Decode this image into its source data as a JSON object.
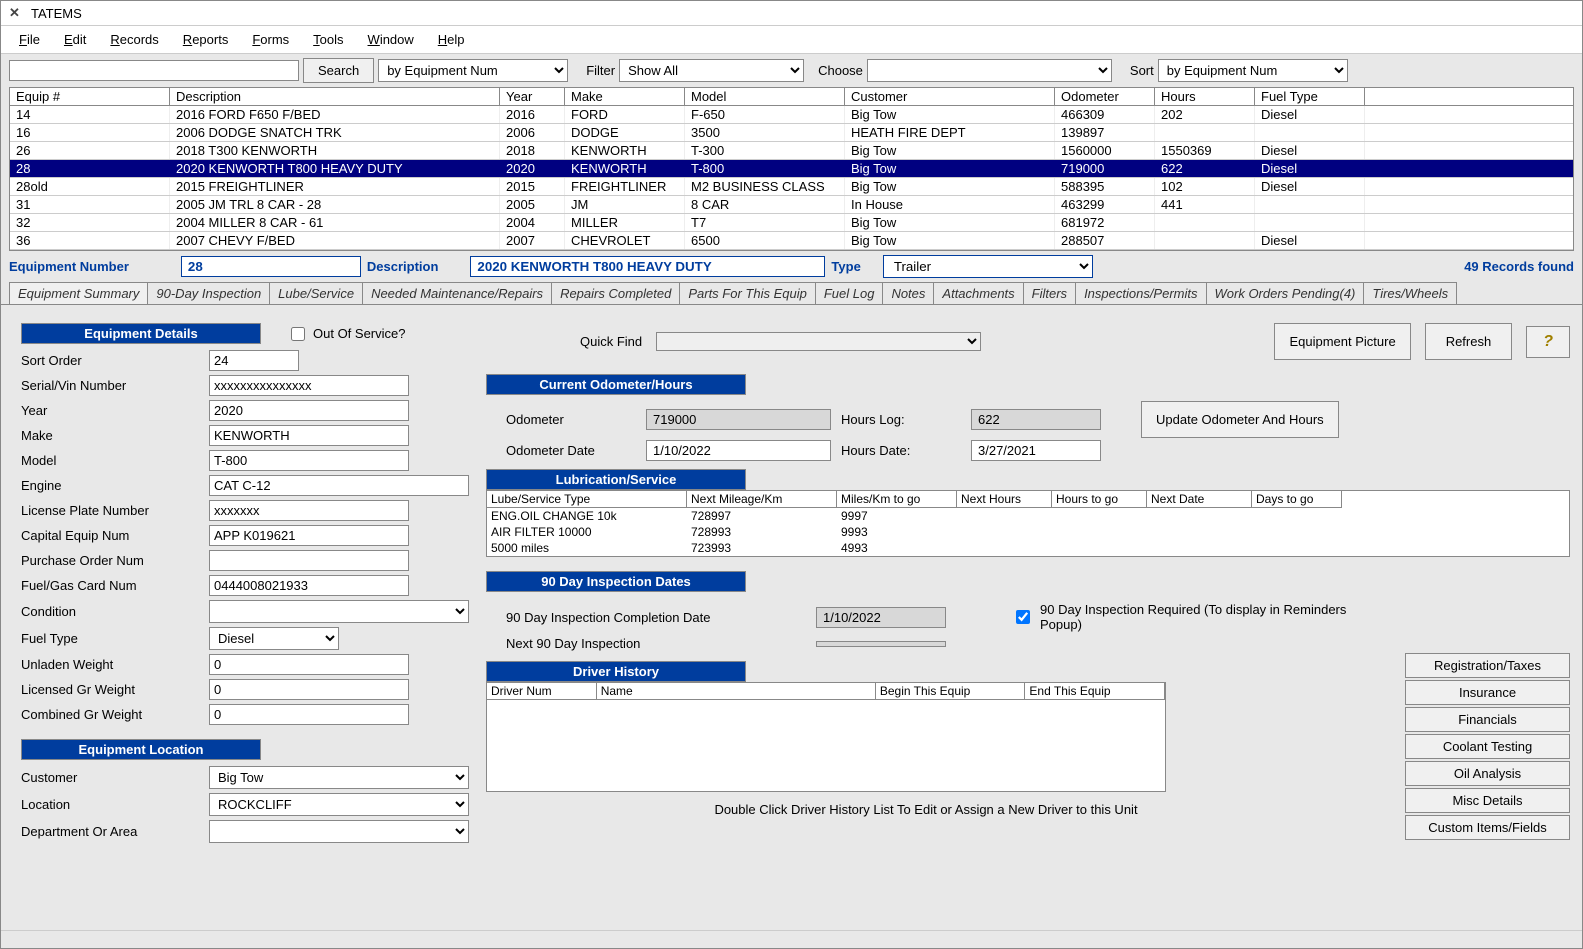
{
  "window": {
    "title": "TATEMS"
  },
  "menu": [
    "File",
    "Edit",
    "Records",
    "Reports",
    "Forms",
    "Tools",
    "Window",
    "Help"
  ],
  "toolbar": {
    "search_btn": "Search",
    "search_dropdown": "by Equipment Num",
    "filter_lbl": "Filter",
    "filter_val": "Show All",
    "choose_lbl": "Choose",
    "sort_lbl": "Sort",
    "sort_val": "by Equipment Num"
  },
  "grid": {
    "headers": [
      "Equip #",
      "Description",
      "Year",
      "Make",
      "Model",
      "Customer",
      "Odometer",
      "Hours",
      "Fuel Type"
    ],
    "rows": [
      {
        "equip": "14",
        "desc": "2016 FORD F650 F/BED",
        "year": "2016",
        "make": "FORD",
        "model": "F-650",
        "cust": "Big Tow",
        "odo": "466309",
        "hours": "202",
        "fuel": "Diesel",
        "sel": false
      },
      {
        "equip": "16",
        "desc": "2006 DODGE  SNATCH TRK",
        "year": "2006",
        "make": "DODGE",
        "model": "3500",
        "cust": "HEATH FIRE DEPT",
        "odo": "139897",
        "hours": "",
        "fuel": "",
        "sel": false
      },
      {
        "equip": "26",
        "desc": "2018 T300 KENWORTH",
        "year": "2018",
        "make": "KENWORTH",
        "model": "T-300",
        "cust": "Big Tow",
        "odo": "1560000",
        "hours": "1550369",
        "fuel": "Diesel",
        "sel": false
      },
      {
        "equip": "28",
        "desc": "2020 KENWORTH T800 HEAVY DUTY",
        "year": "2020",
        "make": "KENWORTH",
        "model": "T-800",
        "cust": "Big Tow",
        "odo": "719000",
        "hours": "622",
        "fuel": "Diesel",
        "sel": true
      },
      {
        "equip": "28old",
        "desc": "2015 FREIGHTLINER",
        "year": "2015",
        "make": "FREIGHTLINER",
        "model": "M2 BUSINESS CLASS",
        "cust": "Big Tow",
        "odo": "588395",
        "hours": "102",
        "fuel": "Diesel",
        "sel": false
      },
      {
        "equip": "31",
        "desc": "2005 JM TRL 8 CAR - 28",
        "year": "2005",
        "make": "JM",
        "model": "8 CAR",
        "cust": "In House",
        "odo": "463299",
        "hours": "441",
        "fuel": "",
        "sel": false
      },
      {
        "equip": "32",
        "desc": "2004 MILLER 8 CAR - 61",
        "year": "2004",
        "make": "MILLER",
        "model": "T7",
        "cust": "Big Tow",
        "odo": "681972",
        "hours": "",
        "fuel": "",
        "sel": false
      },
      {
        "equip": "36",
        "desc": "2007 CHEVY F/BED",
        "year": "2007",
        "make": "CHEVROLET",
        "model": "6500",
        "cust": "Big Tow",
        "odo": "288507",
        "hours": "",
        "fuel": "Diesel",
        "sel": false
      }
    ]
  },
  "detailbar": {
    "equip_lbl": "Equipment Number",
    "equip_val": "28",
    "desc_lbl": "Description",
    "desc_val": "2020 KENWORTH T800 HEAVY DUTY",
    "type_lbl": "Type",
    "type_val": "Trailer",
    "records_found": "49 Records found"
  },
  "tabs": [
    "Equipment Summary",
    "90-Day Inspection",
    "Lube/Service",
    "Needed Maintenance/Repairs",
    "Repairs Completed",
    "Parts For This Equip",
    "Fuel Log",
    "Notes",
    "Attachments",
    "Filters",
    "Inspections/Permits",
    "Work Orders Pending(4)",
    "Tires/Wheels"
  ],
  "details": {
    "header": "Equipment Details",
    "out_of_service": "Out Of Service?",
    "sort_order_lbl": "Sort Order",
    "sort_order": "24",
    "vin_lbl": "Serial/Vin Number",
    "vin": "xxxxxxxxxxxxxxx",
    "year_lbl": "Year",
    "year": "2020",
    "make_lbl": "Make",
    "make": "KENWORTH",
    "model_lbl": "Model",
    "model": "T-800",
    "engine_lbl": "Engine",
    "engine": "CAT C-12",
    "plate_lbl": "License Plate Number",
    "plate": "xxxxxxx",
    "capnum_lbl": "Capital Equip Num",
    "capnum": "APP K019621",
    "ponum_lbl": "Purchase Order Num",
    "ponum": "",
    "fuelcard_lbl": "Fuel/Gas Card Num",
    "fuelcard": "0444008021933",
    "cond_lbl": "Condition",
    "cond": "",
    "fueltype_lbl": "Fuel Type",
    "fueltype": "Diesel",
    "unladen_lbl": "Unladen Weight",
    "unladen": "0",
    "licwt_lbl": "Licensed Gr Weight",
    "licwt": "0",
    "combwt_lbl": "Combined Gr Weight",
    "combwt": "0"
  },
  "location": {
    "header": "Equipment Location",
    "cust_lbl": "Customer",
    "cust": "Big Tow",
    "loc_lbl": "Location",
    "loc": "ROCKCLIFF",
    "dept_lbl": "Department Or Area",
    "dept": ""
  },
  "quickfind": {
    "label": "Quick Find",
    "pic_btn": "Equipment Picture",
    "refresh_btn": "Refresh"
  },
  "odometer": {
    "header": "Current Odometer/Hours",
    "odo_lbl": "Odometer",
    "odo": "719000",
    "ododate_lbl": "Odometer Date",
    "ododate": "1/10/2022",
    "hrslog_lbl": "Hours Log:",
    "hrslog": "622",
    "hrsdate_lbl": "Hours Date:",
    "hrsdate": "3/27/2021",
    "update_btn": "Update Odometer And  Hours"
  },
  "lube": {
    "header": "Lubrication/Service",
    "cols": [
      "Lube/Service Type",
      "Next Mileage/Km",
      "Miles/Km to go",
      "Next Hours",
      "Hours to go",
      "Next Date",
      "Days to go"
    ],
    "rows": [
      {
        "type": "ENG.OIL CHANGE 10k",
        "miles": "728997",
        "togo": "9997"
      },
      {
        "type": "AIR FILTER 10000",
        "miles": "728993",
        "togo": "9993"
      },
      {
        "type": "5000 miles",
        "miles": "723993",
        "togo": "4993"
      }
    ]
  },
  "inspection": {
    "header": "90 Day Inspection Dates",
    "comp_lbl": "90 Day Inspection Completion Date",
    "comp_val": "1/10/2022",
    "next_lbl": "Next 90 Day Inspection",
    "next_val": "",
    "req_lbl": "90 Day Inspection Required (To display in Reminders Popup)"
  },
  "driver": {
    "header": "Driver History",
    "cols": [
      "Driver Num",
      "Name",
      "Begin This Equip",
      "End This Equip"
    ],
    "hint": "Double Click Driver History List To Edit or Assign a New Driver to this Unit"
  },
  "sidebtns": [
    "Registration/Taxes",
    "Insurance",
    "Financials",
    "Coolant Testing",
    "Oil Analysis",
    "Misc Details",
    "Custom Items/Fields"
  ]
}
